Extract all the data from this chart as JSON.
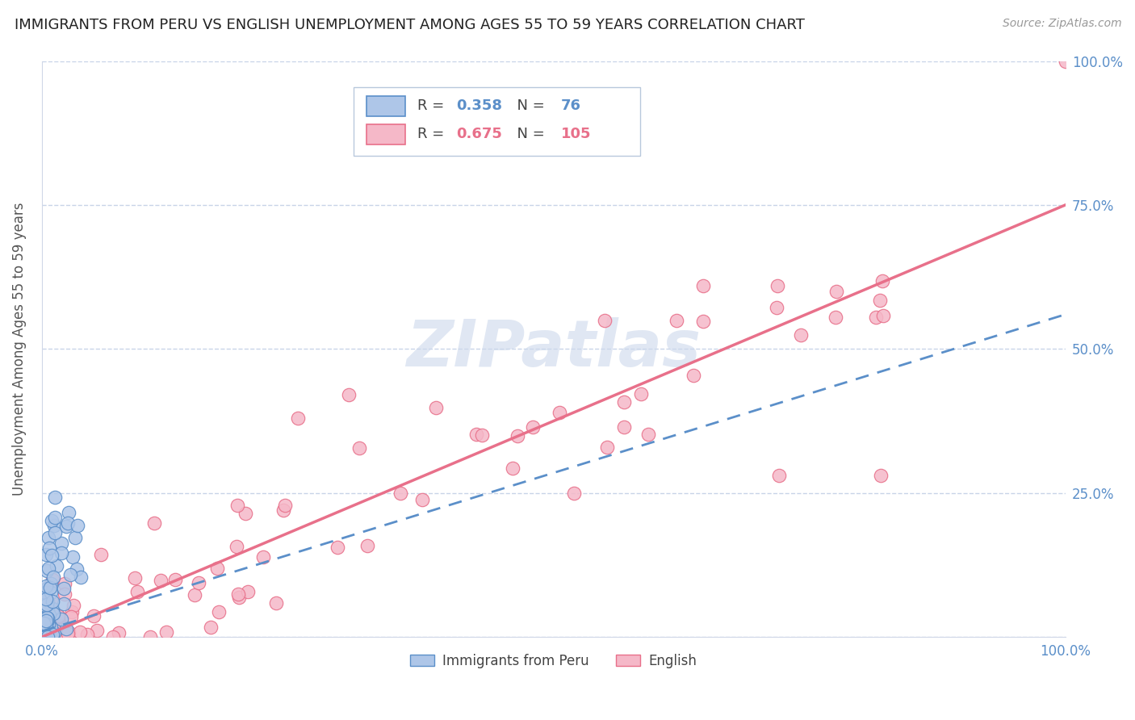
{
  "title": "IMMIGRANTS FROM PERU VS ENGLISH UNEMPLOYMENT AMONG AGES 55 TO 59 YEARS CORRELATION CHART",
  "source": "Source: ZipAtlas.com",
  "ylabel": "Unemployment Among Ages 55 to 59 years",
  "legend_series": [
    "Immigrants from Peru",
    "English"
  ],
  "series1_fill": "#aec6e8",
  "series1_edge": "#5b8fc9",
  "series2_fill": "#f5b8c8",
  "series2_edge": "#e8708a",
  "r1": 0.358,
  "n1": 76,
  "r2": 0.675,
  "n2": 105,
  "axis_color": "#5b8fc9",
  "grid_color": "#c8d4e8",
  "title_fontsize": 13,
  "tick_fontsize": 12,
  "ylabel_fontsize": 12,
  "source_fontsize": 10,
  "watermark_text": "ZIPatlas",
  "watermark_color": "#ccd8ec",
  "bg_color": "#ffffff",
  "xlim": [
    0,
    1
  ],
  "ylim": [
    0,
    1
  ],
  "right_yticks": [
    0.0,
    0.25,
    0.5,
    0.75,
    1.0
  ],
  "right_ytick_labels": [
    "",
    "25.0%",
    "50.0%",
    "75.0%",
    "100.0%"
  ]
}
